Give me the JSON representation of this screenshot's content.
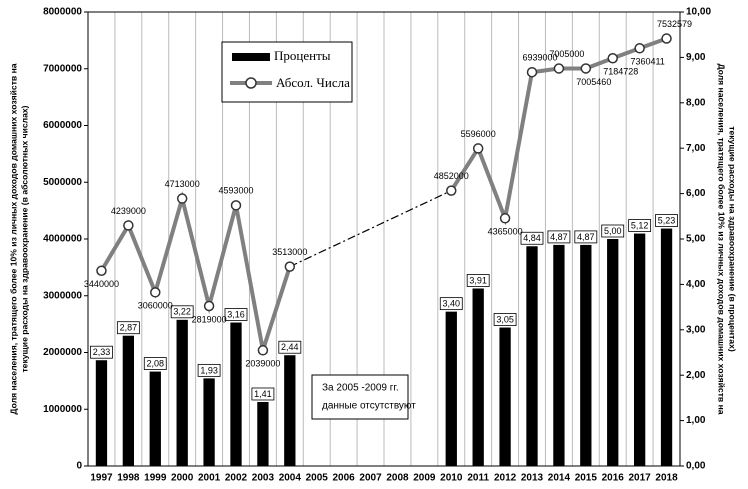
{
  "chart_data": {
    "type": "bar_line",
    "categories": [
      "1997",
      "1998",
      "1999",
      "2000",
      "2001",
      "2002",
      "2003",
      "2004",
      "2005",
      "2006",
      "2007",
      "2008",
      "2009",
      "2010",
      "2011",
      "2012",
      "2013",
      "2014",
      "2015",
      "2016",
      "2017",
      "2018"
    ],
    "series": [
      {
        "name": "Проценты",
        "type": "bar",
        "axis": "y2",
        "color": "#000000",
        "values": [
          2.33,
          2.87,
          2.08,
          3.22,
          1.93,
          3.16,
          1.41,
          2.44,
          null,
          null,
          null,
          null,
          null,
          3.4,
          3.91,
          3.05,
          4.84,
          4.87,
          4.87,
          5.0,
          5.12,
          5.23
        ],
        "value_labels": [
          "2,33",
          "2,87",
          "2,08",
          "3,22",
          "1,93",
          "3,16",
          "1,41",
          "2,44",
          null,
          null,
          null,
          null,
          null,
          "3,40",
          "3,91",
          "3,05",
          "4,84",
          "4,87",
          "4,87",
          "5,00",
          "5,12",
          "5,23"
        ]
      },
      {
        "name": "Абсол. Числа",
        "type": "line",
        "axis": "y",
        "color": "#808080",
        "values": [
          3440000,
          4239000,
          3060000,
          4713000,
          2819000,
          4593000,
          2039000,
          3513000,
          null,
          null,
          null,
          null,
          null,
          4852000,
          5596000,
          4365000,
          6939000,
          7005000,
          7005460,
          7184728,
          7360411,
          7532579
        ]
      }
    ],
    "ylim": [
      0,
      8000000
    ],
    "yticks": [
      0,
      1000000,
      2000000,
      3000000,
      4000000,
      5000000,
      6000000,
      7000000,
      8000000
    ],
    "y2lim": [
      0,
      10
    ],
    "y2ticks": [
      {
        "value": 0,
        "label": "0,00"
      },
      {
        "value": 1,
        "label": "1,00"
      },
      {
        "value": 2,
        "label": "2,00"
      },
      {
        "value": 3,
        "label": "3,00"
      },
      {
        "value": 4,
        "label": "4,00"
      },
      {
        "value": 5,
        "label": "5,00"
      },
      {
        "value": 6,
        "label": "6,00"
      },
      {
        "value": 7,
        "label": "7,00"
      },
      {
        "value": 8,
        "label": "8,00"
      },
      {
        "value": 9,
        "label": "9,00"
      },
      {
        "value": 10,
        "label": "10,00"
      }
    ],
    "ylabel": [
      "Доля населения, тратящего более 10% из личных доходов домашних хозяйств на",
      "текущие расходы на здравоохранение (в абсолютных числах)"
    ],
    "y2label": [
      "Доля населения, тратящего более 10% из личных доходов домашних хозяйств на",
      "текущие расходы на здравоохранение (в процентах)"
    ],
    "annotation": [
      "За 2005 -2009 гг.",
      "данные  отсутствуют"
    ]
  }
}
